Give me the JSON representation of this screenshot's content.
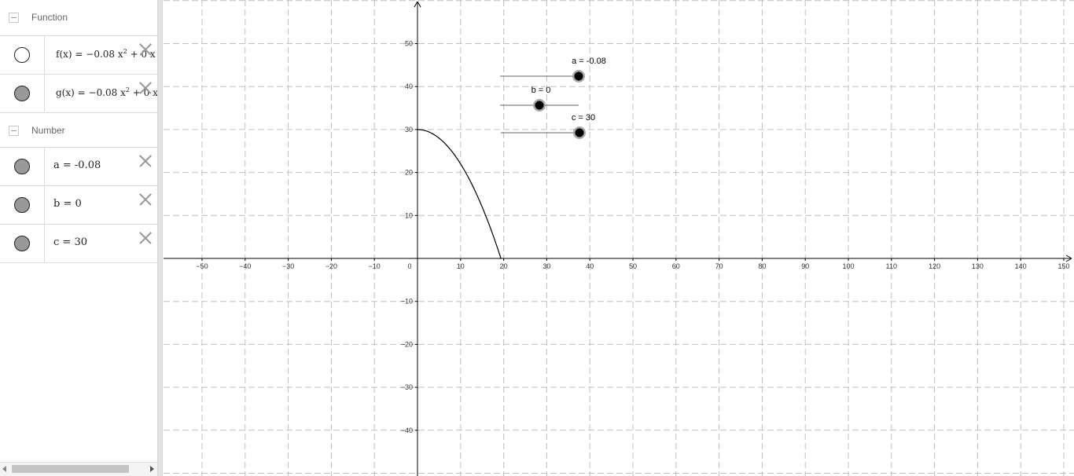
{
  "algebra": {
    "groups": [
      {
        "label": "Function",
        "items": [
          {
            "name": "f",
            "lhs": "f(x)",
            "eq": "=",
            "rhs_main": "−0.08 x",
            "sup": "2",
            "rhs_tail": " + 0 x",
            "visible": false
          },
          {
            "name": "g",
            "lhs": "g(x)",
            "eq": "=",
            "rhs_main": "−0.08 x",
            "sup": "2",
            "rhs_tail": " + 0 x",
            "visible": true
          }
        ]
      },
      {
        "label": "Number",
        "items": [
          {
            "name": "a",
            "text": "a = -0.08",
            "visible": true
          },
          {
            "name": "b",
            "text": "b = 0",
            "visible": true
          },
          {
            "name": "c",
            "text": "c = 30",
            "visible": true
          }
        ]
      }
    ]
  },
  "graph": {
    "x_ticks": [
      "−50",
      "−40",
      "−30",
      "−20",
      "−10",
      "0",
      "10",
      "20",
      "30",
      "40",
      "50",
      "60",
      "70",
      "80",
      "90",
      "100",
      "110",
      "120",
      "130",
      "140",
      "150"
    ],
    "y_ticks_pos": [
      "10",
      "20",
      "30",
      "40",
      "50"
    ],
    "y_ticks_neg": [
      "−10",
      "−20",
      "−30",
      "−40"
    ],
    "curve": {
      "a": -0.08,
      "b": 0,
      "c": 30,
      "x_from": 0,
      "x_to": 19.4
    },
    "sliders": [
      {
        "name": "a",
        "label": "a = -0.08",
        "value": -0.08,
        "min": -0.1,
        "max": -0.08
      },
      {
        "name": "b",
        "label": "b = 0",
        "value": 0,
        "min": -5,
        "max": 5
      },
      {
        "name": "c",
        "label": "c = 30",
        "value": 30,
        "min": 0,
        "max": 30
      }
    ],
    "colors": {
      "grid": "#c0c0c0",
      "axis": "#000000",
      "curve": "#000000",
      "slider_line": "#666666",
      "point": "#000000",
      "point_halo": "#9a9a9a"
    }
  }
}
